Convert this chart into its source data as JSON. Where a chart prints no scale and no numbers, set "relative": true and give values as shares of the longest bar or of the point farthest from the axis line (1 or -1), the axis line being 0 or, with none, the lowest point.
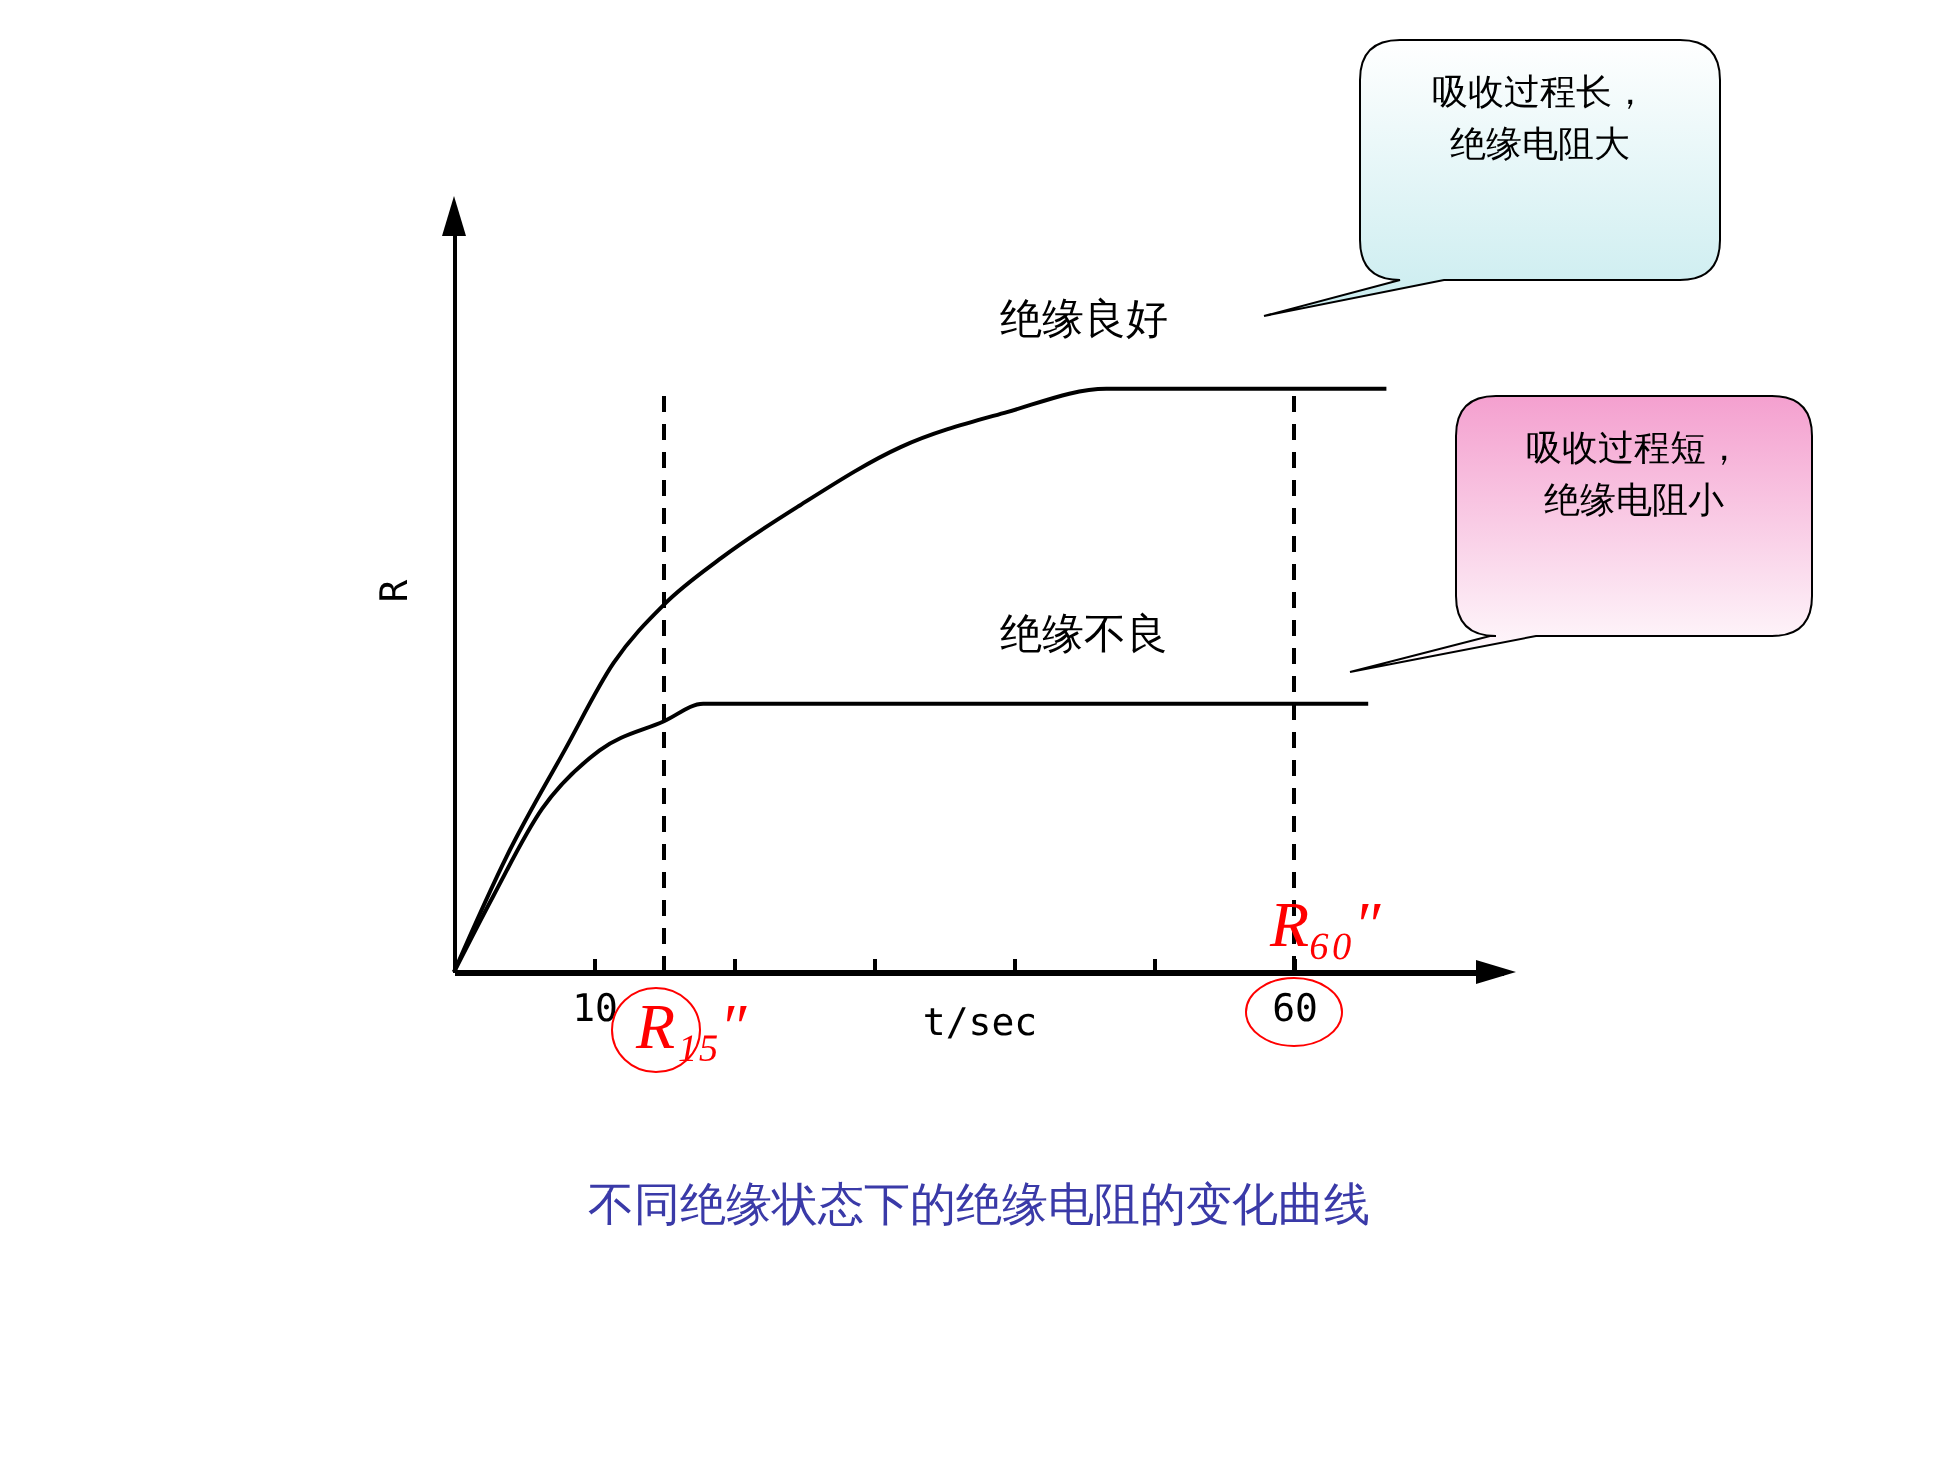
{
  "chart_data": {
    "type": "line",
    "title": "不同绝缘状态下的绝缘电阻的变化曲线",
    "xlabel": "t/sec",
    "ylabel": "R",
    "relative": true,
    "xlim": [
      0,
      75
    ],
    "xticks": [
      10,
      {
        "value": 20,
        "label": null
      },
      {
        "value": 30,
        "label": null
      },
      {
        "value": 40,
        "label": null
      },
      {
        "value": 50,
        "label": null
      },
      60
    ],
    "series": [
      {
        "name": "绝缘良好",
        "color": "#000000",
        "x": [
          0,
          3.8,
          7.9,
          11.4,
          15,
          19.1,
          24.7,
          31.9,
          39.5,
          46.6,
          66.6
        ],
        "values": [
          0,
          0.2,
          0.38,
          0.53,
          0.63,
          0.71,
          0.8,
          0.9,
          0.96,
          1,
          1
        ]
      },
      {
        "name": "绝缘不良",
        "color": "#000000",
        "x": [
          0,
          2.8,
          6.3,
          10.4,
          15,
          17.8,
          65.3
        ],
        "values": [
          0,
          0.13,
          0.28,
          0.38,
          0.43,
          0.46,
          0.46
        ]
      }
    ],
    "ref_lines": [
      {
        "axis": "x",
        "value": 15,
        "label": "R₁₅″",
        "line_style": "dashed"
      },
      {
        "axis": "x",
        "value": 60,
        "label": "R₆₀″",
        "line_style": "dashed"
      }
    ],
    "annotations": [
      "吸收过程长，绝缘电阻大",
      "吸收过程短，绝缘电阻小"
    ],
    "grid": false,
    "legend": false,
    "marker": "none",
    "line_style": "solid"
  }
}
